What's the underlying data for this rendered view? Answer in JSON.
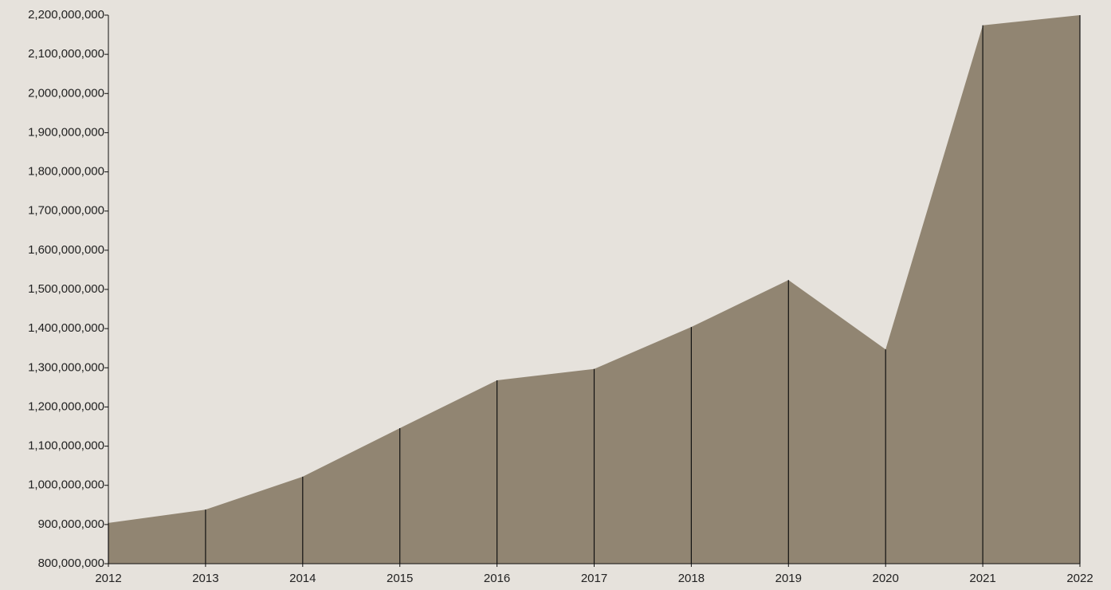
{
  "chart_data": {
    "type": "area",
    "x": [
      2012,
      2013,
      2014,
      2015,
      2016,
      2017,
      2018,
      2019,
      2020,
      2021,
      2022
    ],
    "values": [
      904000000,
      938000000,
      1022000000,
      1146000000,
      1268000000,
      1297000000,
      1404000000,
      1524000000,
      1347000000,
      2174000000,
      2200000000
    ],
    "color": "#918572",
    "xlim": [
      2012,
      2022
    ],
    "xticks": [
      2012,
      2013,
      2014,
      2015,
      2016,
      2017,
      2018,
      2019,
      2020,
      2021,
      2022
    ],
    "ylim": [
      800000000,
      2200000000
    ],
    "yticks": [
      {
        "value": 800000000,
        "label": "800,000,000"
      },
      {
        "value": 900000000,
        "label": "900,000,000"
      },
      {
        "value": 1000000000,
        "label": "1,000,000,000"
      },
      {
        "value": 1100000000,
        "label": "1,100,000,000"
      },
      {
        "value": 1200000000,
        "label": "1,200,000,000"
      },
      {
        "value": 1300000000,
        "label": "1,300,000,000"
      },
      {
        "value": 1400000000,
        "label": "1,400,000,000"
      },
      {
        "value": 1500000000,
        "label": "1,500,000,000"
      },
      {
        "value": 1600000000,
        "label": "1,600,000,000"
      },
      {
        "value": 1700000000,
        "label": "1,700,000,000"
      },
      {
        "value": 1800000000,
        "label": "1,800,000,000"
      },
      {
        "value": 1900000000,
        "label": "1,900,000,000"
      },
      {
        "value": 2000000000,
        "label": "2,000,000,000"
      },
      {
        "value": 2100000000,
        "label": "2,100,000,000"
      },
      {
        "value": 2200000000,
        "label": "2,200,000,000"
      }
    ]
  }
}
